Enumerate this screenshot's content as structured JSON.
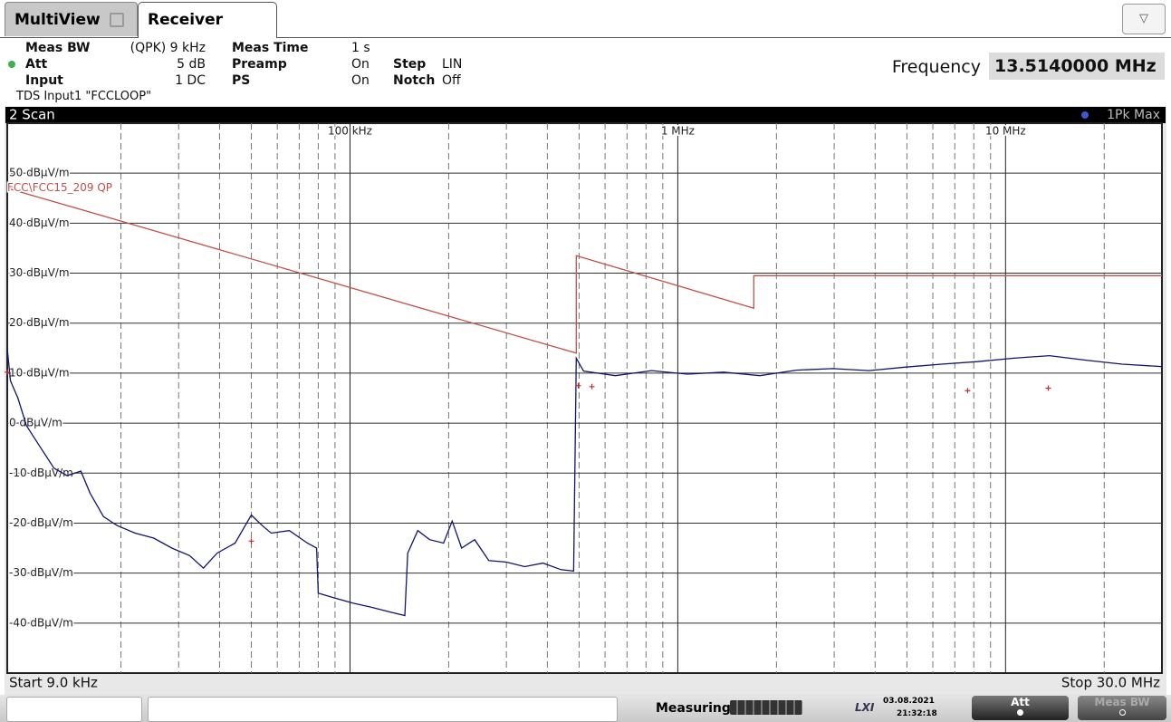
{
  "tabs": [
    "MultiView",
    "Receiver"
  ],
  "settings": [
    [
      "Meas BW",
      "(QPK) 9 kHz",
      "Meas Time",
      "1 s"
    ],
    [
      "Att",
      "5 dB",
      "Preamp",
      "On",
      "Step",
      "LIN"
    ],
    [
      "Input",
      "1 DC",
      "PS",
      "On",
      "Notch",
      "Off"
    ]
  ],
  "input_note": "TDS Input1 \"FCCLOOP\"",
  "frequency": {
    "label": "Frequency",
    "value": "13.5140000 MHz"
  },
  "chart_data": {
    "type": "line",
    "title": "2 Scan",
    "log_x": true,
    "grid": true,
    "xlim": [
      9000,
      30000000
    ],
    "xticks": [
      {
        "value": 100000,
        "label": "100 kHz"
      },
      {
        "value": 1000000,
        "label": "1 MHz"
      },
      {
        "value": 10000000,
        "label": "10 MHz"
      }
    ],
    "xminor_grid": [
      20000,
      30000,
      40000,
      50000,
      60000,
      70000,
      80000,
      90000,
      200000,
      300000,
      400000,
      500000,
      600000,
      700000,
      800000,
      900000,
      2000000,
      3000000,
      4000000,
      5000000,
      6000000,
      7000000,
      8000000,
      9000000,
      20000000
    ],
    "ylim": [
      -50,
      60
    ],
    "yticks": [
      {
        "value": 50,
        "label": "50 dBµV/m"
      },
      {
        "value": 40,
        "label": "40 dBµV/m"
      },
      {
        "value": 30,
        "label": "30 dBµV/m"
      },
      {
        "value": 20,
        "label": "20 dBµV/m"
      },
      {
        "value": 10,
        "label": "10 dBµV/m"
      },
      {
        "value": 0,
        "label": "0 dBµV/m"
      },
      {
        "value": -10,
        "label": "-10 dBµV/m"
      },
      {
        "value": -20,
        "label": "-20 dBµV/m"
      },
      {
        "value": -30,
        "label": "-30 dBµV/m"
      },
      {
        "value": -40,
        "label": "-40 dBµV/m"
      }
    ],
    "start_label": "Start 9.0 kHz",
    "stop_label": "Stop 30.0 MHz",
    "series": [
      {
        "name": "1Pk Max",
        "color": "#14146e",
        "x": [
          9000,
          9200,
          9700,
          10300,
          11400,
          12500,
          13700,
          15100,
          16100,
          17700,
          19500,
          22100,
          25200,
          28600,
          32400,
          35700,
          39300,
          44600,
          50000,
          54000,
          57500,
          65300,
          74100,
          79100,
          80000,
          90000,
          102000,
          116000,
          131000,
          147000,
          150000,
          161000,
          175000,
          193000,
          205000,
          219000,
          240000,
          265000,
          300000,
          341000,
          388000,
          440000,
          481000,
          490000,
          516000,
          645000,
          832000,
          1070000,
          1380000,
          1780000,
          2300000,
          2970000,
          3830000,
          4930000,
          6370000,
          8210000,
          10600000,
          13600000,
          17600000,
          22700000,
          30000000
        ],
        "values": [
          15,
          8.5,
          5,
          -0.5,
          -5,
          -9,
          -10.5,
          -9.6,
          -14,
          -18.7,
          -20.5,
          -22,
          -23,
          -25,
          -26.5,
          -29,
          -26,
          -24,
          -18.4,
          -20.5,
          -22,
          -21.5,
          -24,
          -25,
          -34,
          -35,
          -36,
          -36.8,
          -37.7,
          -38.5,
          -26,
          -21.5,
          -23.3,
          -24,
          -19.6,
          -25,
          -23.3,
          -27.5,
          -27.8,
          -28.7,
          -28,
          -29.3,
          -29.6,
          13,
          10.4,
          9.5,
          10.5,
          9.8,
          10.2,
          9.5,
          10.6,
          10.9,
          10.5,
          11.2,
          11.8,
          12.3,
          13,
          13.5,
          12.6,
          11.8,
          11.3
        ]
      },
      {
        "name": "FCC\\FCC15_209 QP",
        "color": "#c0504d",
        "x": [
          9000,
          490000,
          490000,
          1705000,
          1705000,
          30000000
        ],
        "values": [
          47,
          14,
          33.5,
          23,
          29.5,
          29.5
        ]
      },
      {
        "marker": "+",
        "color": "#c03030",
        "x": [
          9000,
          50000,
          497000,
          547000,
          7660000,
          13500000
        ],
        "values": [
          10.2,
          -23.6,
          7.5,
          7.3,
          6.5,
          7
        ]
      }
    ]
  },
  "status": {
    "message": "Measuring ...",
    "date": "03.08.2021",
    "time": "21:32:18",
    "buttons": [
      "Att",
      "Meas BW"
    ]
  }
}
